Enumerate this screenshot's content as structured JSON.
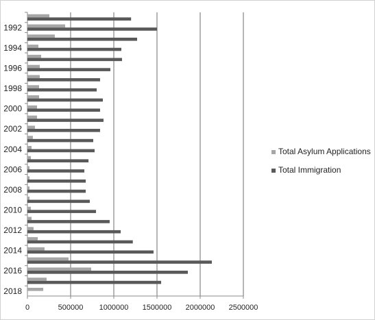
{
  "chart_data": {
    "type": "hbar",
    "categories": [
      null,
      "1992",
      null,
      "1994",
      null,
      "1996",
      null,
      "1998",
      null,
      "2000",
      null,
      "2002",
      null,
      "2004",
      null,
      "2006",
      null,
      "2008",
      null,
      "2010",
      null,
      "2012",
      null,
      "2014",
      null,
      "2016",
      null,
      "2018"
    ],
    "series": [
      {
        "name": "Total Asylum Applications",
        "color": "#a6a6a6",
        "values": [
          254000,
          437000,
          317000,
          127000,
          159000,
          143000,
          143000,
          135000,
          135000,
          111000,
          111000,
          87000,
          63000,
          48000,
          40000,
          24000,
          24000,
          24000,
          24000,
          40000,
          48000,
          71000,
          119000,
          198000,
          476000,
          738000,
          222000,
          183000
        ]
      },
      {
        "name": "Total Immigration",
        "color": "#595959",
        "values": [
          1200000,
          1500000,
          1270000,
          1087000,
          1095000,
          960000,
          841000,
          802000,
          873000,
          841000,
          881000,
          841000,
          762000,
          778000,
          707000,
          659000,
          675000,
          675000,
          722000,
          794000,
          952000,
          1080000,
          1220000,
          1460000,
          2135000,
          1857000,
          1548000,
          null
        ]
      }
    ],
    "xlim": [
      0,
      2500000
    ],
    "xticks": [
      0,
      500000,
      1000000,
      1500000,
      2000000,
      2500000
    ],
    "grid": true,
    "legend": "right"
  }
}
